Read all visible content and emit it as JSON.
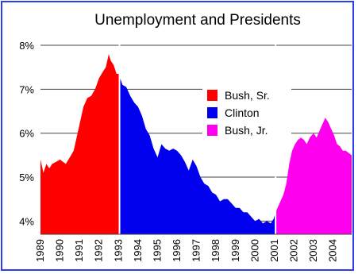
{
  "chart_data": {
    "type": "area",
    "title": "Unemployment and Presidents",
    "xlabel": "",
    "ylabel": "",
    "xlim": [
      1989,
      2004.95
    ],
    "ylim": [
      3.7,
      8.0
    ],
    "y_ticks": [
      {
        "value": 4,
        "label": "4%"
      },
      {
        "value": 5,
        "label": "5%"
      },
      {
        "value": 6,
        "label": "6%"
      },
      {
        "value": 7,
        "label": "7%"
      },
      {
        "value": 8,
        "label": "8%"
      }
    ],
    "x_ticks": [
      "1989",
      "1990",
      "1991",
      "1992",
      "1993",
      "1994",
      "1995",
      "1996",
      "1997",
      "1998",
      "1999",
      "2000",
      "2001",
      "2002",
      "2003",
      "2004"
    ],
    "grid": "horizontal",
    "legend_position": "center-right",
    "series": [
      {
        "name": "Bush, Sr.",
        "color": "#ff0000",
        "points": [
          [
            1989.0,
            5.4
          ],
          [
            1989.15,
            5.1
          ],
          [
            1989.3,
            5.3
          ],
          [
            1989.45,
            5.2
          ],
          [
            1989.6,
            5.3
          ],
          [
            1989.8,
            5.35
          ],
          [
            1990.0,
            5.4
          ],
          [
            1990.15,
            5.35
          ],
          [
            1990.3,
            5.3
          ],
          [
            1990.5,
            5.45
          ],
          [
            1990.7,
            5.6
          ],
          [
            1990.85,
            5.9
          ],
          [
            1991.0,
            6.2
          ],
          [
            1991.2,
            6.6
          ],
          [
            1991.4,
            6.8
          ],
          [
            1991.6,
            6.85
          ],
          [
            1991.8,
            7.0
          ],
          [
            1992.0,
            7.25
          ],
          [
            1992.2,
            7.4
          ],
          [
            1992.35,
            7.5
          ],
          [
            1992.5,
            7.8
          ],
          [
            1992.6,
            7.65
          ],
          [
            1992.75,
            7.55
          ],
          [
            1992.9,
            7.35
          ],
          [
            1993.05,
            7.35
          ]
        ]
      },
      {
        "name": "Clinton",
        "color": "#0000ee",
        "points": [
          [
            1993.05,
            7.3
          ],
          [
            1993.2,
            7.1
          ],
          [
            1993.4,
            7.05
          ],
          [
            1993.6,
            6.85
          ],
          [
            1993.8,
            6.7
          ],
          [
            1994.0,
            6.6
          ],
          [
            1994.2,
            6.4
          ],
          [
            1994.4,
            6.1
          ],
          [
            1994.6,
            5.95
          ],
          [
            1994.8,
            5.65
          ],
          [
            1995.0,
            5.45
          ],
          [
            1995.2,
            5.75
          ],
          [
            1995.4,
            5.65
          ],
          [
            1995.6,
            5.6
          ],
          [
            1995.8,
            5.65
          ],
          [
            1996.0,
            5.6
          ],
          [
            1996.2,
            5.5
          ],
          [
            1996.4,
            5.35
          ],
          [
            1996.6,
            5.15
          ],
          [
            1996.8,
            5.4
          ],
          [
            1997.0,
            5.25
          ],
          [
            1997.2,
            5.0
          ],
          [
            1997.4,
            4.85
          ],
          [
            1997.6,
            4.8
          ],
          [
            1997.8,
            4.65
          ],
          [
            1998.0,
            4.6
          ],
          [
            1998.2,
            4.45
          ],
          [
            1998.4,
            4.5
          ],
          [
            1998.6,
            4.5
          ],
          [
            1998.8,
            4.4
          ],
          [
            1999.0,
            4.3
          ],
          [
            1999.2,
            4.3
          ],
          [
            1999.4,
            4.2
          ],
          [
            1999.6,
            4.2
          ],
          [
            1999.8,
            4.1
          ],
          [
            2000.0,
            4.0
          ],
          [
            2000.2,
            4.05
          ],
          [
            2000.4,
            3.95
          ],
          [
            2000.6,
            4.0
          ],
          [
            2000.8,
            3.95
          ],
          [
            2000.95,
            4.05
          ],
          [
            2001.05,
            4.2
          ]
        ]
      },
      {
        "name": "Bush, Jr.",
        "color": "#ff00ee",
        "points": [
          [
            2001.05,
            4.2
          ],
          [
            2001.15,
            4.3
          ],
          [
            2001.3,
            4.45
          ],
          [
            2001.45,
            4.6
          ],
          [
            2001.6,
            4.85
          ],
          [
            2001.75,
            5.3
          ],
          [
            2001.9,
            5.6
          ],
          [
            2002.05,
            5.75
          ],
          [
            2002.2,
            5.85
          ],
          [
            2002.35,
            5.9
          ],
          [
            2002.5,
            5.85
          ],
          [
            2002.65,
            5.75
          ],
          [
            2002.8,
            5.9
          ],
          [
            2003.0,
            6.0
          ],
          [
            2003.15,
            5.9
          ],
          [
            2003.3,
            6.05
          ],
          [
            2003.45,
            6.2
          ],
          [
            2003.6,
            6.35
          ],
          [
            2003.75,
            6.25
          ],
          [
            2003.9,
            6.1
          ],
          [
            2004.05,
            5.95
          ],
          [
            2004.2,
            5.75
          ],
          [
            2004.35,
            5.7
          ],
          [
            2004.5,
            5.6
          ],
          [
            2004.65,
            5.6
          ],
          [
            2004.8,
            5.55
          ],
          [
            2004.95,
            5.5
          ]
        ]
      }
    ]
  }
}
